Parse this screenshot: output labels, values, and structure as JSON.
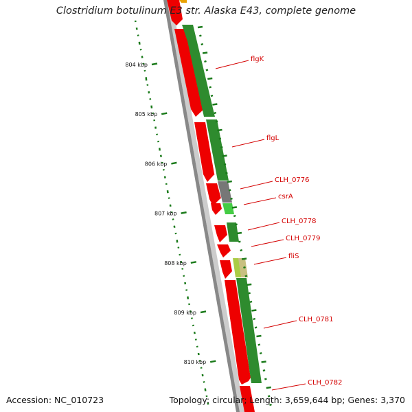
{
  "title": "Clostridium botulinum E3 str. Alaska E43, complete genome",
  "accession": "Accession: NC_010723",
  "stats": {
    "topology": "Topology: circular;",
    "length": "Length: 3,659,644 bp;",
    "genes": "Genes: 3,370"
  },
  "colors": {
    "backbone": "#888888",
    "forward_cds": "#ee0000",
    "reverse_cds": "#2e8b2e",
    "gc_tick": "#1a7a1a",
    "label": "#d40000",
    "gray_gene": "#777777",
    "light_green_gene": "#44cc44",
    "yellow_green_gene": "#aacc44"
  },
  "scale_ticks": [
    {
      "label": "804 kbp"
    },
    {
      "label": "805 kbp"
    },
    {
      "label": "806 kbp"
    },
    {
      "label": "807 kbp"
    },
    {
      "label": "808 kbp"
    },
    {
      "label": "809 kbp"
    },
    {
      "label": "810 kbp"
    }
  ],
  "gene_labels": [
    {
      "name": "flgK"
    },
    {
      "name": "flgL"
    },
    {
      "name": "CLH_0776"
    },
    {
      "name": "csrA"
    },
    {
      "name": "CLH_0778"
    },
    {
      "name": "CLH_0779"
    },
    {
      "name": "fliS"
    },
    {
      "name": "CLH_0781"
    },
    {
      "name": "CLH_0782"
    }
  ]
}
